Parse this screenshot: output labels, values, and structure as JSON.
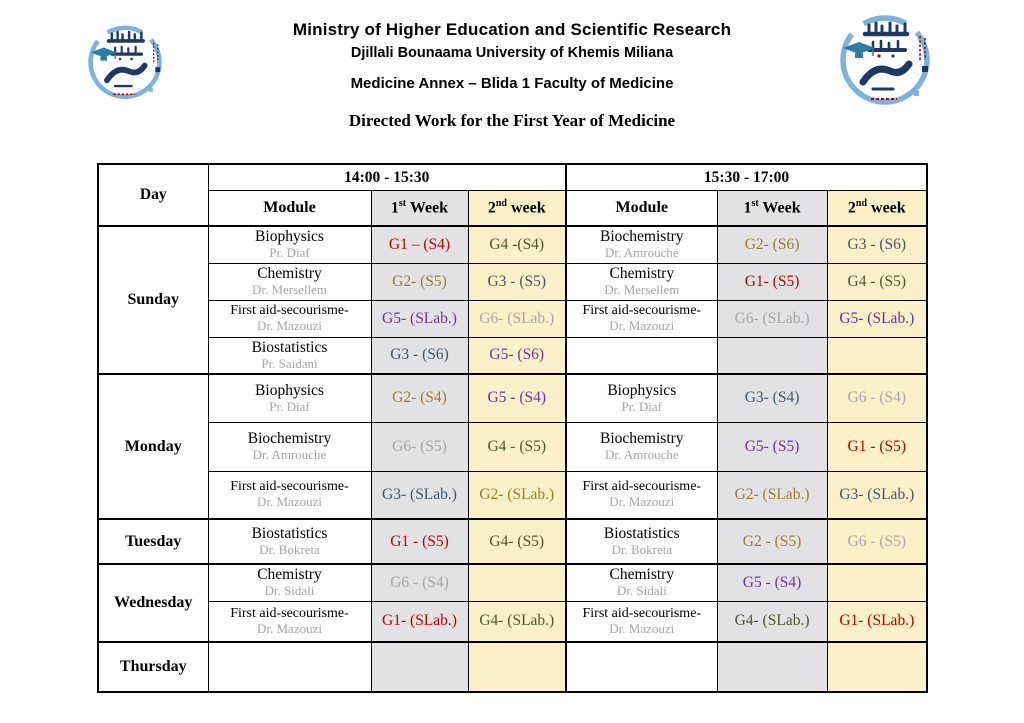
{
  "document": {
    "title_line1": "Ministry of Higher Education and Scientific Research",
    "title_line2": "Djillali Bounaama University of Khemis Miliana",
    "title_line3": "Medicine Annex – Blida 1 Faculty of Medicine",
    "subtitle": "Directed Work for the First Year of Medicine"
  },
  "table": {
    "day_header": "Day",
    "time_slot_1": "14:00 - 15:30",
    "time_slot_2": "15:30 - 17:00",
    "module_header": "Module",
    "week1": {
      "num": "1",
      "sup": "st",
      "word": " Week"
    },
    "week2": {
      "num": "2",
      "sup": "nd",
      "word": " week"
    }
  },
  "colors": {
    "g1_red": "#C00000",
    "g2_gold": "#9A7D2C",
    "g3_slate": "#44546A",
    "g4_olive": "#4F5430",
    "g5_purple": "#7030A0",
    "g6_gray": "#A6A6A6",
    "professor_gray": "#A6A6A6",
    "week1_column_bg": "#E2E2E4",
    "week2_column_bg": "#FBF0C7",
    "logo_blue": "#7FB2D9",
    "logo_navy": "#1F3864",
    "logo_teal": "#2B7DA5",
    "logo_red": "#C00000"
  },
  "days": [
    {
      "name": "Sunday",
      "rows": [
        {
          "left": {
            "module": "Biophysics",
            "prof": "Pr. Diaf",
            "w1": {
              "t": "G1 – (S4)",
              "c": "g1_red"
            },
            "w2": {
              "t": "G4 -(S4)",
              "c": "g4_olive"
            }
          },
          "right": {
            "module": "Biochemistry",
            "prof": "Dr. Amrouche",
            "w1": {
              "t": "G2- (S6)",
              "c": "g2_gold"
            },
            "w2": {
              "t": "G3 - (S6)",
              "c": "g3_slate"
            }
          }
        },
        {
          "left": {
            "module": "Chemistry",
            "prof": "Dr. Mersellem",
            "w1": {
              "t": "G2- (S5)",
              "c": "g2_gold"
            },
            "w2": {
              "t": "G3 - (S5)",
              "c": "g3_slate"
            }
          },
          "right": {
            "module": "Chemistry",
            "prof": "Dr. Mersellem",
            "w1": {
              "t": "G1- (S5)",
              "c": "g1_red"
            },
            "w2": {
              "t": "G4 - (S5)",
              "c": "g4_olive"
            }
          }
        },
        {
          "left": {
            "module": "First aid-secourisme-",
            "prof": "Dr. Mazouzi",
            "w1": {
              "t": "G5- (SLab.)",
              "c": "g5_purple"
            },
            "w2": {
              "t": "G6- (SLab.)",
              "c": "g6_gray"
            }
          },
          "right": {
            "module": "First aid-secourisme-",
            "prof": "Dr. Mazouzi",
            "w1": {
              "t": "G6- (SLab.)",
              "c": "g6_gray"
            },
            "w2": {
              "t": "G5- (SLab.)",
              "c": "g5_purple"
            }
          }
        },
        {
          "left": {
            "module": "Biostatistics",
            "prof": "Pr. Saidani",
            "w1": {
              "t": "G3 - (S6)",
              "c": "g3_slate"
            },
            "w2": {
              "t": "G5- (S6)",
              "c": "g5_purple"
            }
          },
          "right": {
            "module": "",
            "prof": "",
            "w1": {
              "t": "",
              "c": ""
            },
            "w2": {
              "t": "",
              "c": ""
            }
          }
        }
      ]
    },
    {
      "name": "Monday",
      "rows": [
        {
          "left": {
            "module": "Biophysics",
            "prof": "Pr. Diaf",
            "w1": {
              "t": "G2- (S4)",
              "c": "g2_gold"
            },
            "w2": {
              "t": "G5 - (S4)",
              "c": "g5_purple"
            }
          },
          "right": {
            "module": "Biophysics",
            "prof": "Pr. Diaf",
            "w1": {
              "t": "G3- (S4)",
              "c": "g3_slate"
            },
            "w2": {
              "t": "G6 - (S4)",
              "c": "g6_gray"
            }
          }
        },
        {
          "left": {
            "module": "Biochemistry",
            "prof": "Dr. Amrouche",
            "w1": {
              "t": "G6- (S5)",
              "c": "g6_gray"
            },
            "w2": {
              "t": "G4 - (S5)",
              "c": "g4_olive"
            }
          },
          "right": {
            "module": "Biochemistry",
            "prof": "Dr. Amrouche",
            "w1": {
              "t": "G5- (S5)",
              "c": "g5_purple"
            },
            "w2": {
              "t": "G1 - (S5)",
              "c": "g1_red"
            }
          }
        },
        {
          "left": {
            "module": "First aid-secourisme-",
            "prof": "Dr. Mazouzi",
            "w1": {
              "t": "G3- (SLab.)",
              "c": "g3_slate"
            },
            "w2": {
              "t": "G2- (SLab.)",
              "c": "g2_gold"
            }
          },
          "right": {
            "module": "First aid-secourisme-",
            "prof": "Dr. Mazouzi",
            "w1": {
              "t": "G2- (SLab.)",
              "c": "g2_gold"
            },
            "w2": {
              "t": "G3- (SLab.)",
              "c": "g3_slate"
            }
          }
        }
      ]
    },
    {
      "name": "Tuesday",
      "rows": [
        {
          "left": {
            "module": "Biostatistics",
            "prof": "Dr. Bokreta",
            "w1": {
              "t": "G1 - (S5)",
              "c": "g1_red"
            },
            "w2": {
              "t": "G4- (S5)",
              "c": "g4_olive"
            }
          },
          "right": {
            "module": "Biostatistics",
            "prof": "Dr. Bokreta",
            "w1": {
              "t": "G2 - (S5)",
              "c": "g2_gold"
            },
            "w2": {
              "t": "G6 - (S5)",
              "c": "g6_gray"
            }
          }
        }
      ]
    },
    {
      "name": "Wednesday",
      "rows": [
        {
          "left": {
            "module": "Chemistry",
            "prof": "Dr. Sidali",
            "w1": {
              "t": "G6 - (S4)",
              "c": "g6_gray"
            },
            "w2": {
              "t": "",
              "c": ""
            }
          },
          "right": {
            "module": "Chemistry",
            "prof": "Dr. Sidali",
            "w1": {
              "t": "G5 - (S4)",
              "c": "g5_purple"
            },
            "w2": {
              "t": "",
              "c": ""
            }
          }
        },
        {
          "left": {
            "module": "First aid-secourisme-",
            "prof": "Dr. Mazouzi",
            "w1": {
              "t": "G1- (SLab.)",
              "c": "g1_red"
            },
            "w2": {
              "t": "G4- (SLab.)",
              "c": "g4_olive"
            }
          },
          "right": {
            "module": "First aid-secourisme-",
            "prof": "Dr. Mazouzi",
            "w1": {
              "t": "G4- (SLab.)",
              "c": "g4_olive"
            },
            "w2": {
              "t": "G1- (SLab.)",
              "c": "g1_red"
            }
          }
        }
      ]
    },
    {
      "name": "Thursday",
      "rows": [
        {
          "left": {
            "module": "",
            "prof": "",
            "w1": {
              "t": "",
              "c": ""
            },
            "w2": {
              "t": "",
              "c": ""
            }
          },
          "right": {
            "module": "",
            "prof": "",
            "w1": {
              "t": "",
              "c": ""
            },
            "w2": {
              "t": "",
              "c": ""
            }
          }
        }
      ]
    }
  ]
}
